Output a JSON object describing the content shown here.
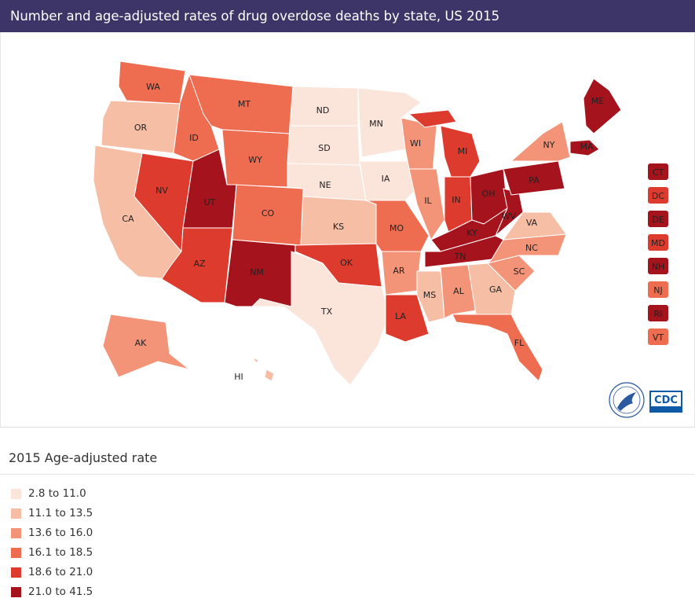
{
  "header": {
    "title": "Number and age-adjusted rates of drug overdose deaths by state, US 2015"
  },
  "legend": {
    "title": "2015 Age-adjusted rate",
    "items": [
      {
        "label": "2.8 to 11.0",
        "color": "#fbe4da"
      },
      {
        "label": "11.1 to 13.5",
        "color": "#f7bea6"
      },
      {
        "label": "13.6 to 16.0",
        "color": "#f39478"
      },
      {
        "label": "16.1 to 18.5",
        "color": "#ee6d51"
      },
      {
        "label": "18.6 to 21.0",
        "color": "#de3b2f"
      },
      {
        "label": "21.0 to 41.5",
        "color": "#a5131d"
      }
    ]
  },
  "states": [
    {
      "abbr": "WA",
      "cls": 4
    },
    {
      "abbr": "OR",
      "cls": 2
    },
    {
      "abbr": "CA",
      "cls": 2
    },
    {
      "abbr": "NV",
      "cls": 5
    },
    {
      "abbr": "ID",
      "cls": 4
    },
    {
      "abbr": "MT",
      "cls": 4
    },
    {
      "abbr": "WY",
      "cls": 4
    },
    {
      "abbr": "UT",
      "cls": 6
    },
    {
      "abbr": "AZ",
      "cls": 5
    },
    {
      "abbr": "CO",
      "cls": 4
    },
    {
      "abbr": "NM",
      "cls": 6
    },
    {
      "abbr": "ND",
      "cls": 1
    },
    {
      "abbr": "SD",
      "cls": 1
    },
    {
      "abbr": "NE",
      "cls": 1
    },
    {
      "abbr": "KS",
      "cls": 2
    },
    {
      "abbr": "OK",
      "cls": 5
    },
    {
      "abbr": "TX",
      "cls": 1
    },
    {
      "abbr": "MN",
      "cls": 1
    },
    {
      "abbr": "IA",
      "cls": 1
    },
    {
      "abbr": "MO",
      "cls": 4
    },
    {
      "abbr": "AR",
      "cls": 3
    },
    {
      "abbr": "LA",
      "cls": 5
    },
    {
      "abbr": "WI",
      "cls": 3
    },
    {
      "abbr": "IL",
      "cls": 3
    },
    {
      "abbr": "MI",
      "cls": 5
    },
    {
      "abbr": "IN",
      "cls": 5
    },
    {
      "abbr": "OH",
      "cls": 6
    },
    {
      "abbr": "KY",
      "cls": 6
    },
    {
      "abbr": "TN",
      "cls": 6
    },
    {
      "abbr": "MS",
      "cls": 2
    },
    {
      "abbr": "AL",
      "cls": 3
    },
    {
      "abbr": "GA",
      "cls": 2
    },
    {
      "abbr": "FL",
      "cls": 4
    },
    {
      "abbr": "SC",
      "cls": 3
    },
    {
      "abbr": "NC",
      "cls": 3
    },
    {
      "abbr": "VA",
      "cls": 2
    },
    {
      "abbr": "WV",
      "cls": 6
    },
    {
      "abbr": "PA",
      "cls": 6
    },
    {
      "abbr": "NY",
      "cls": 3
    },
    {
      "abbr": "ME",
      "cls": 6
    },
    {
      "abbr": "MA",
      "cls": 6
    },
    {
      "abbr": "AK",
      "cls": 3
    },
    {
      "abbr": "HI",
      "cls": 2
    }
  ],
  "small_states": [
    {
      "abbr": "CT",
      "cls": 6
    },
    {
      "abbr": "DC",
      "cls": 5
    },
    {
      "abbr": "DE",
      "cls": 6
    },
    {
      "abbr": "MD",
      "cls": 5
    },
    {
      "abbr": "NH",
      "cls": 6
    },
    {
      "abbr": "NJ",
      "cls": 4
    },
    {
      "abbr": "RI",
      "cls": 6
    },
    {
      "abbr": "VT",
      "cls": 4
    }
  ],
  "logos": {
    "hhs": "hhs-seal",
    "cdc": "CDC"
  }
}
